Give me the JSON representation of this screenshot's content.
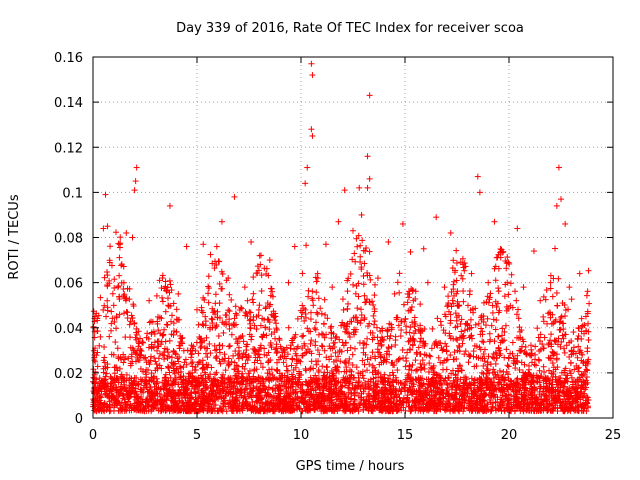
{
  "chart_data": {
    "type": "scatter",
    "title": "Day 339 of 2016, Rate Of TEC Index for receiver scoa",
    "xlabel": "GPS time / hours",
    "ylabel": "ROTI / TECUs",
    "xlim": [
      0,
      25
    ],
    "ylim": [
      0,
      0.16
    ],
    "xticks": [
      0,
      5,
      10,
      15,
      20,
      25
    ],
    "xtick_labels": [
      "0",
      "5",
      "10",
      "15",
      "20",
      "25"
    ],
    "yticks": [
      0,
      0.02,
      0.04,
      0.06,
      0.08,
      0.1,
      0.12,
      0.14,
      0.16
    ],
    "ytick_labels": [
      "0",
      "0.02",
      "0.04",
      "0.06",
      "0.08",
      "0.1",
      "0.12",
      "0.14",
      "0.16"
    ],
    "grid": true,
    "marker": "plus",
    "series": [
      {
        "name": "ROTI",
        "color": "#ff0000",
        "points": [
          [
            0.6,
            0.099
          ],
          [
            0.7,
            0.085
          ],
          [
            0.5,
            0.084
          ],
          [
            2.1,
            0.111
          ],
          [
            2.05,
            0.105
          ],
          [
            2.0,
            0.101
          ],
          [
            3.7,
            0.094
          ],
          [
            6.8,
            0.098
          ],
          [
            10.3,
            0.111
          ],
          [
            10.2,
            0.104
          ],
          [
            10.5,
            0.157
          ],
          [
            10.55,
            0.152
          ],
          [
            10.5,
            0.128
          ],
          [
            10.55,
            0.125
          ],
          [
            13.3,
            0.143
          ],
          [
            13.2,
            0.116
          ],
          [
            13.3,
            0.106
          ],
          [
            13.2,
            0.102
          ],
          [
            12.8,
            0.102
          ],
          [
            12.1,
            0.101
          ],
          [
            16.5,
            0.089
          ],
          [
            18.5,
            0.107
          ],
          [
            18.6,
            0.1
          ],
          [
            22.4,
            0.111
          ],
          [
            22.5,
            0.097
          ],
          [
            22.3,
            0.094
          ],
          [
            14.9,
            0.086
          ],
          [
            11.8,
            0.087
          ],
          [
            19.3,
            0.087
          ],
          [
            1.6,
            0.082
          ],
          [
            1.9,
            0.08
          ],
          [
            8.5,
            0.07
          ],
          [
            9.7,
            0.076
          ],
          [
            20.4,
            0.084
          ],
          [
            21.2,
            0.074
          ],
          [
            23.4,
            0.064
          ],
          [
            4.5,
            0.076
          ],
          [
            5.3,
            0.077
          ],
          [
            6.2,
            0.087
          ],
          [
            7.6,
            0.078
          ],
          [
            15.9,
            0.075
          ],
          [
            17.2,
            0.082
          ],
          [
            14.2,
            0.078
          ],
          [
            11.2,
            0.077
          ],
          [
            12.5,
            0.083
          ],
          [
            22.7,
            0.086
          ],
          [
            0.1,
            0.045
          ],
          [
            0.3,
            0.032
          ],
          [
            1.2,
            0.058
          ],
          [
            2.7,
            0.052
          ],
          [
            3.2,
            0.061
          ],
          [
            4.1,
            0.055
          ],
          [
            5.0,
            0.048
          ],
          [
            5.7,
            0.044
          ],
          [
            6.5,
            0.062
          ],
          [
            7.3,
            0.058
          ],
          [
            8.0,
            0.05
          ],
          [
            8.8,
            0.042
          ],
          [
            9.4,
            0.06
          ],
          [
            10.8,
            0.064
          ],
          [
            11.5,
            0.058
          ],
          [
            12.9,
            0.066
          ],
          [
            13.7,
            0.062
          ],
          [
            14.5,
            0.055
          ],
          [
            15.4,
            0.052
          ],
          [
            16.1,
            0.06
          ],
          [
            16.9,
            0.058
          ],
          [
            17.6,
            0.05
          ],
          [
            18.2,
            0.064
          ],
          [
            19.0,
            0.06
          ],
          [
            19.8,
            0.054
          ],
          [
            20.7,
            0.058
          ],
          [
            21.5,
            0.052
          ],
          [
            22.0,
            0.06
          ],
          [
            22.9,
            0.058
          ],
          [
            23.7,
            0.045
          ],
          [
            1.0,
            0.028
          ],
          [
            3.0,
            0.025
          ],
          [
            5.5,
            0.027
          ],
          [
            7.8,
            0.03
          ],
          [
            9.1,
            0.029
          ],
          [
            11.0,
            0.032
          ],
          [
            13.0,
            0.031
          ],
          [
            15.1,
            0.029
          ],
          [
            17.0,
            0.03
          ],
          [
            19.5,
            0.031
          ],
          [
            21.0,
            0.028
          ],
          [
            23.0,
            0.03
          ],
          [
            0.2,
            0.008
          ],
          [
            4.0,
            0.006
          ],
          [
            8.3,
            0.007
          ],
          [
            12.2,
            0.005
          ],
          [
            16.3,
            0.006
          ],
          [
            20.1,
            0.007
          ],
          [
            23.8,
            0.008
          ]
        ]
      }
    ]
  }
}
